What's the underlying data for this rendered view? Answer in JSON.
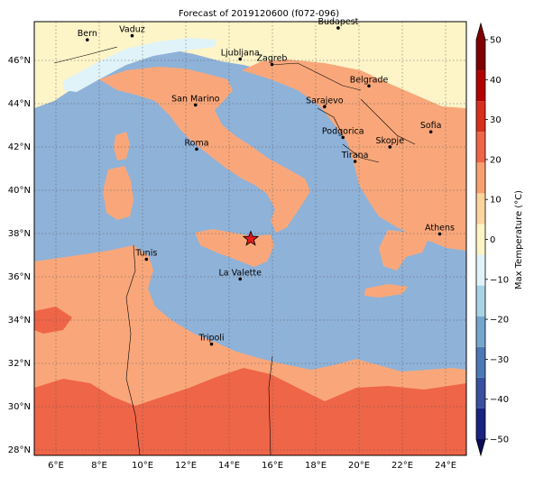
{
  "title": "Forecast of 2019120600 (f072-096)",
  "colorbar": {
    "label": "Max Temperature (°C)",
    "levels": [
      -50,
      -40,
      -30,
      -20,
      -10,
      0,
      10,
      20,
      30,
      40,
      50
    ],
    "tick_labels": [
      "−50",
      "−40",
      "−30",
      "−20",
      "−10",
      "0",
      "10",
      "20",
      "30",
      "40",
      "50"
    ],
    "colors": [
      "#1a237e",
      "#3950a0",
      "#4d78b6",
      "#75a7cd",
      "#a9d2e5",
      "#e0f3f8",
      "#fdf4c8",
      "#fdd49e",
      "#f8a16f",
      "#ef6548",
      "#d7301f",
      "#b30000",
      "#7f0000"
    ]
  },
  "axes": {
    "lon_ticks": [
      "6°E",
      "8°E",
      "10°E",
      "12°E",
      "14°E",
      "16°E",
      "18°E",
      "20°E",
      "22°E",
      "24°E"
    ],
    "lat_ticks": [
      "28°N",
      "30°N",
      "32°N",
      "34°N",
      "36°N",
      "38°N",
      "40°N",
      "42°N",
      "44°N",
      "46°N"
    ]
  },
  "map_colors": {
    "sea": "#8fb2d8",
    "land_warm": "#f9a77a",
    "land_hot": "#ef6548",
    "land_mild": "#fdf4c8",
    "cold": "#e0f3f8"
  },
  "cities": [
    {
      "name": "Bern",
      "lon": 7.45,
      "lat": 46.95
    },
    {
      "name": "Vaduz",
      "lon": 9.52,
      "lat": 47.14
    },
    {
      "name": "Budapest",
      "lon": 19.04,
      "lat": 47.5
    },
    {
      "name": "Ljubljana",
      "lon": 14.51,
      "lat": 46.06
    },
    {
      "name": "Zagreb",
      "lon": 15.98,
      "lat": 45.81
    },
    {
      "name": "Belgrade",
      "lon": 20.46,
      "lat": 44.82
    },
    {
      "name": "San Marino",
      "lon": 12.45,
      "lat": 43.94
    },
    {
      "name": "Sarajevo",
      "lon": 18.41,
      "lat": 43.86
    },
    {
      "name": "Sofia",
      "lon": 23.32,
      "lat": 42.7
    },
    {
      "name": "Podgorica",
      "lon": 19.26,
      "lat": 42.44
    },
    {
      "name": "Skopje",
      "lon": 21.43,
      "lat": 42.0
    },
    {
      "name": "Roma",
      "lon": 12.5,
      "lat": 41.9
    },
    {
      "name": "Tirana",
      "lon": 19.82,
      "lat": 41.33
    },
    {
      "name": "Athens",
      "lon": 23.73,
      "lat": 37.98
    },
    {
      "name": "Tunis",
      "lon": 10.18,
      "lat": 36.81
    },
    {
      "name": "La Valette",
      "lon": 14.51,
      "lat": 35.9
    },
    {
      "name": "Tripoli",
      "lon": 13.19,
      "lat": 32.89
    }
  ],
  "marker": {
    "type": "star",
    "color": "#e31a1c",
    "lon": 15.0,
    "lat": 37.75
  }
}
